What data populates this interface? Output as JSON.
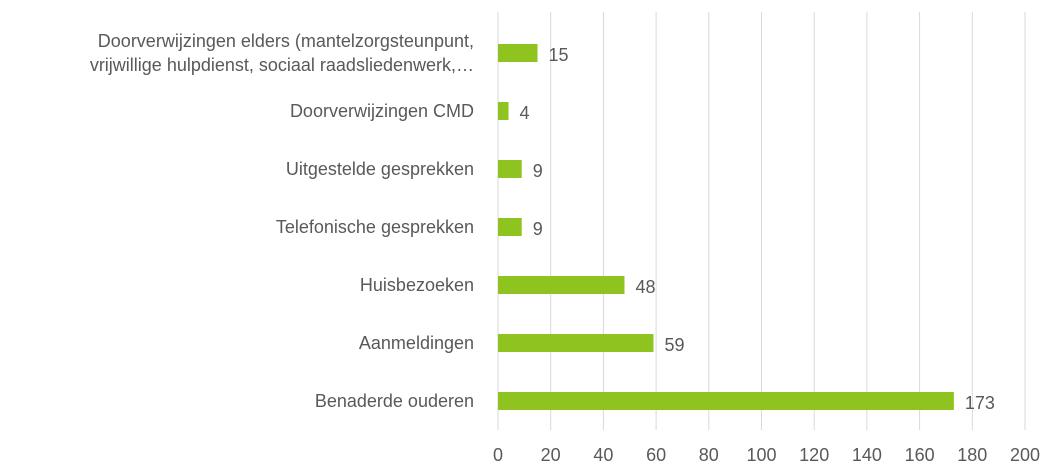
{
  "chart_data": {
    "type": "bar",
    "orientation": "horizontal",
    "categories": [
      "Doorverwijzingen elders (mantelzorgsteunpunt,\nvrijwillige hulpdienst, sociaal raadsliedenwerk,…",
      "Doorverwijzingen CMD",
      "Uitgestelde gesprekken",
      "Telefonische gesprekken",
      "Huisbezoeken",
      "Aanmeldingen",
      "Benaderde ouderen"
    ],
    "values": [
      15,
      4,
      9,
      9,
      48,
      59,
      173
    ],
    "color": "#8fc31f",
    "xlim": [
      0,
      200
    ],
    "xticks": [
      0,
      20,
      40,
      60,
      80,
      100,
      120,
      140,
      160,
      180,
      200
    ],
    "grid": true
  }
}
